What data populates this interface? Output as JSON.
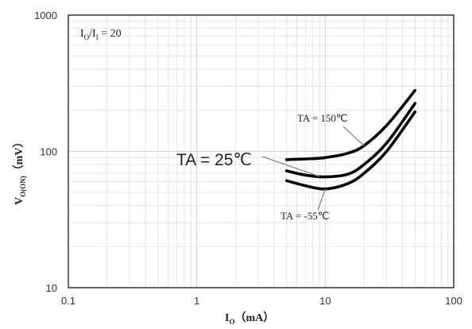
{
  "chart_data": {
    "type": "line",
    "x_scale": "log",
    "y_scale": "log",
    "xlim": [
      0.1,
      100
    ],
    "ylim": [
      10,
      1000
    ],
    "x_ticks": [
      "0.1",
      "1",
      "10",
      "100"
    ],
    "y_ticks": [
      "10",
      "100",
      "1000"
    ],
    "xlabel": {
      "main": "I",
      "sub": "O",
      "unit": "（mA）"
    },
    "ylabel": {
      "main": "V",
      "sub": "O(ON)",
      "unit": "（mV）"
    },
    "inset_label": {
      "a": "I",
      "a_sub": "O",
      "slash": "/I",
      "b_sub": "I",
      "rest": " = 20"
    },
    "grid": true,
    "line_color": "#000000",
    "series": [
      {
        "name": "TA = 150℃",
        "x": [
          5,
          7,
          10,
          15,
          20,
          30,
          50
        ],
        "y": [
          87,
          88,
          90,
          97,
          110,
          155,
          280
        ]
      },
      {
        "name": "TA = 25℃",
        "x": [
          5,
          7,
          10,
          15,
          20,
          30,
          50
        ],
        "y": [
          72,
          67,
          65,
          68,
          80,
          115,
          225
        ]
      },
      {
        "name": "TA = -55℃",
        "x": [
          5,
          7,
          10,
          15,
          20,
          30,
          50
        ],
        "y": [
          61,
          56,
          53,
          58,
          69,
          100,
          195
        ]
      }
    ],
    "annotations": [
      {
        "text": "TA = 150℃",
        "series": 0
      },
      {
        "text": "TA = 25℃",
        "series": 1
      },
      {
        "text": "TA = -55℃",
        "series": 2
      }
    ]
  }
}
